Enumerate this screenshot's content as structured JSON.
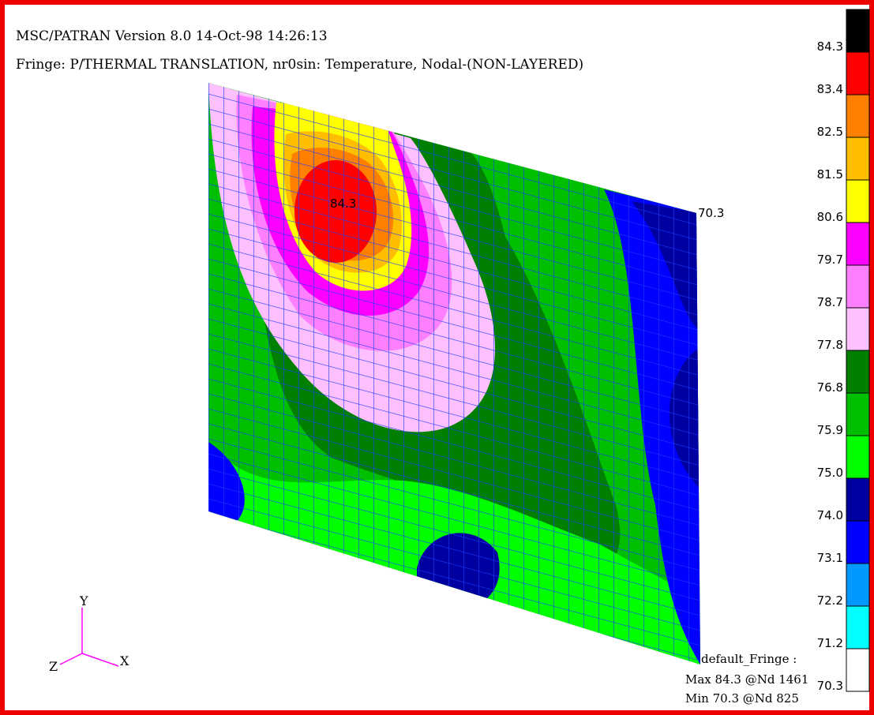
{
  "header": {
    "version_line": "MSC/PATRAN Version 8.0 14-Oct-98 14:26:13",
    "fringe_line": "Fringe:  P/THERMAL TRANSLATION, nr0sin: Temperature, Nodal-(NON-LAYERED)"
  },
  "plot": {
    "max_marker": "84.3",
    "min_marker": "70.3"
  },
  "legend": {
    "levels": [
      "84.3",
      "83.4",
      "82.5",
      "81.5",
      "80.6",
      "79.7",
      "78.7",
      "77.8",
      "76.8",
      "75.9",
      "75.0",
      "74.0",
      "73.1",
      "72.2",
      "71.2",
      "70.3"
    ],
    "colors": [
      "#000000",
      "#ff0000",
      "#ff8000",
      "#ffbf00",
      "#ffff00",
      "#ff00ff",
      "#ff80ff",
      "#ffc0ff",
      "#007f00",
      "#00bf00",
      "#00ff00",
      "#0000a0",
      "#0000ff",
      "#0099ff",
      "#00ffff",
      "#ffffff"
    ]
  },
  "axes": {
    "y": "Y",
    "z": "Z",
    "x": "X"
  },
  "summary": {
    "name": "default_Fringe :",
    "max": "Max 84.3 @Nd 1461",
    "min": "Min 70.3 @Nd 825"
  }
}
